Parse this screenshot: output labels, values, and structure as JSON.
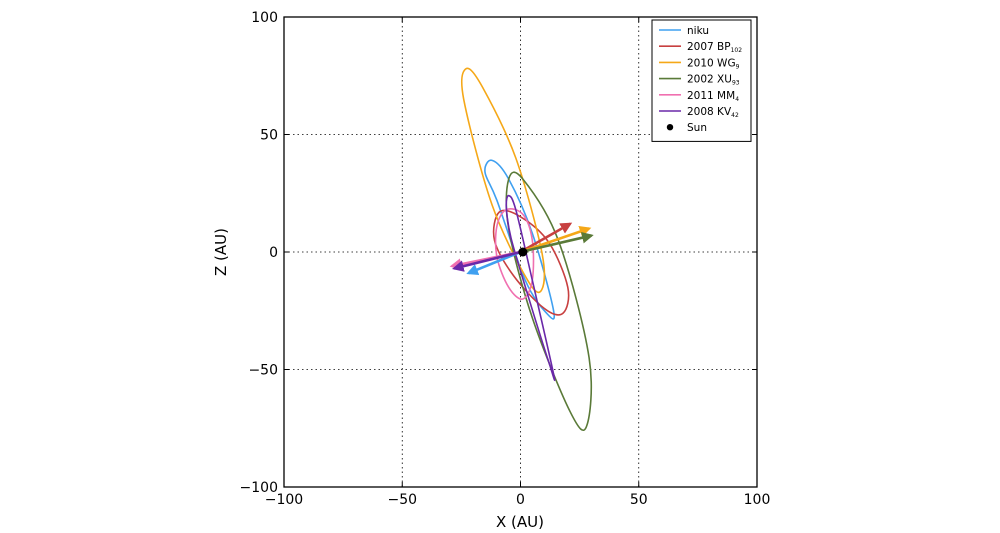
{
  "chart_data": {
    "type": "line",
    "title": "",
    "xlabel": "X (AU)",
    "ylabel": "Z (AU)",
    "xlim": [
      -100,
      100
    ],
    "ylim": [
      -100,
      100
    ],
    "xticks": [
      -100,
      -50,
      0,
      50,
      100
    ],
    "yticks": [
      -100,
      -50,
      0,
      50,
      100
    ],
    "xtick_labels": [
      "−100",
      "−50",
      "0",
      "50",
      "100"
    ],
    "ytick_labels": [
      "−100",
      "−50",
      "0",
      "50",
      "100"
    ],
    "grid": true,
    "grid_style": "dotted",
    "legend_position": "top-right",
    "series": [
      {
        "name": "niku",
        "name_sub": "",
        "color": "#3fa0f0",
        "orbit_points": [
          [
            -12,
            39
          ],
          [
            -5,
            31
          ],
          [
            5,
            8
          ],
          [
            14,
            -25
          ],
          [
            11,
            -26
          ],
          [
            2,
            -12
          ],
          [
            -10,
            22
          ],
          [
            -15,
            34
          ]
        ],
        "arrow": {
          "from": [
            0,
            0
          ],
          "to": [
            -22,
            -9
          ]
        }
      },
      {
        "name": "2007 BP",
        "name_sub": "102",
        "color": "#c84040",
        "orbit_points": [
          [
            -9,
            17
          ],
          [
            0,
            15
          ],
          [
            12,
            4
          ],
          [
            20,
            -15
          ],
          [
            18,
            -26
          ],
          [
            10,
            -24
          ],
          [
            -3,
            -10
          ],
          [
            -11,
            5
          ]
        ],
        "arrow": {
          "from": [
            0,
            0
          ],
          "to": [
            21,
            12
          ]
        }
      },
      {
        "name": "2010 WG",
        "name_sub": "9",
        "color": "#f5a818",
        "orbit_points": [
          [
            -23,
            78
          ],
          [
            -16,
            70
          ],
          [
            -2,
            40
          ],
          [
            9,
            0
          ],
          [
            9,
            -16
          ],
          [
            3,
            -12
          ],
          [
            -12,
            20
          ],
          [
            -24,
            65
          ]
        ],
        "arrow": {
          "from": [
            0,
            0
          ],
          "to": [
            29,
            10
          ]
        }
      },
      {
        "name": "2002 XU",
        "name_sub": "93",
        "color": "#5a7a38",
        "orbit_points": [
          [
            -5,
            31
          ],
          [
            1,
            31
          ],
          [
            16,
            5
          ],
          [
            29,
            -45
          ],
          [
            28,
            -74
          ],
          [
            21,
            -68
          ],
          [
            5,
            -28
          ],
          [
            -5,
            10
          ]
        ],
        "arrow": {
          "from": [
            0,
            0
          ],
          "to": [
            30,
            7
          ]
        }
      },
      {
        "name": "2011 MM",
        "name_sub": "4",
        "color": "#f070b0",
        "orbit_points": [
          [
            -6,
            18
          ],
          [
            1,
            16
          ],
          [
            5,
            5
          ],
          [
            5,
            -12
          ],
          [
            1,
            -20
          ],
          [
            -5,
            -15
          ],
          [
            -10,
            -2
          ],
          [
            -10,
            11
          ]
        ],
        "arrow": {
          "from": [
            0,
            0
          ],
          "to": [
            -29,
            -6
          ]
        }
      },
      {
        "name": "2008 KV",
        "name_sub": "42",
        "color": "#6a28a8",
        "orbit_points": [
          [
            -5,
            24
          ],
          [
            -2,
            18
          ],
          [
            5,
            -12
          ],
          [
            14,
            -52
          ],
          [
            12,
            -47
          ],
          [
            3,
            -18
          ],
          [
            -4,
            6
          ],
          [
            -6,
            19
          ]
        ],
        "arrow": {
          "from": [
            0,
            0
          ],
          "to": [
            -28,
            -7
          ]
        }
      }
    ],
    "sun": {
      "name": "Sun",
      "position": [
        1,
        0
      ],
      "color": "#000000"
    }
  }
}
